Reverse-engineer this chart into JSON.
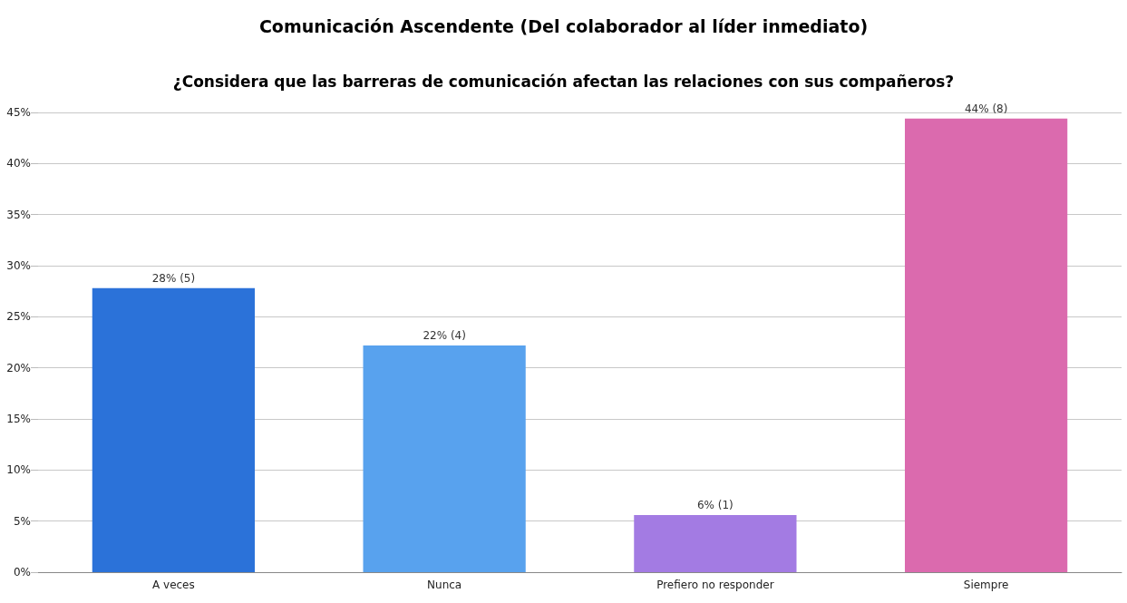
{
  "chart_data": {
    "type": "bar",
    "title": "Comunicación Ascendente (Del colaborador al líder inmediato)",
    "subtitle": "¿Considera que las barreras de comunicación afectan las relaciones con sus compañeros?",
    "categories": [
      "A veces",
      "Nunca",
      "Prefiero no responder",
      "Siempre"
    ],
    "values": [
      27.8,
      22.2,
      5.6,
      44.4
    ],
    "colors": [
      "#2b72d9",
      "#58a2ee",
      "#a37be3",
      "#db6aae"
    ],
    "value_labels": [
      "28% (5)",
      "22% (4)",
      "6% (1)",
      "44% (8)"
    ],
    "ylim": [
      0,
      45
    ],
    "yticks": [
      {
        "value": 0,
        "label": "0%"
      },
      {
        "value": 5,
        "label": "5%"
      },
      {
        "value": 10,
        "label": "10%"
      },
      {
        "value": 15,
        "label": "15%"
      },
      {
        "value": 20,
        "label": "20%"
      },
      {
        "value": 25,
        "label": "25%"
      },
      {
        "value": 30,
        "label": "30%"
      },
      {
        "value": 35,
        "label": "35%"
      },
      {
        "value": 40,
        "label": "40%"
      },
      {
        "value": 45,
        "label": "45%"
      }
    ],
    "grid": "y"
  }
}
